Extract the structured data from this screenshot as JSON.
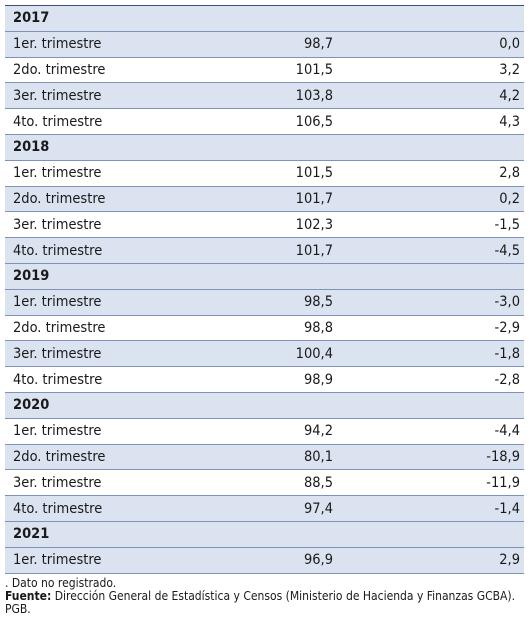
{
  "table": {
    "sections": [
      {
        "year": "2017",
        "rows": [
          {
            "label": "1er. trimestre",
            "value": "98,7",
            "change": "0,0"
          },
          {
            "label": "2do. trimestre",
            "value": "101,5",
            "change": "3,2"
          },
          {
            "label": "3er. trimestre",
            "value": "103,8",
            "change": "4,2"
          },
          {
            "label": "4to. trimestre",
            "value": "106,5",
            "change": "4,3"
          }
        ]
      },
      {
        "year": "2018",
        "rows": [
          {
            "label": "1er. trimestre",
            "value": "101,5",
            "change": "2,8"
          },
          {
            "label": "2do. trimestre",
            "value": "101,7",
            "change": "0,2"
          },
          {
            "label": "3er. trimestre",
            "value": "102,3",
            "change": "-1,5"
          },
          {
            "label": "4to. trimestre",
            "value": "101,7",
            "change": "-4,5"
          }
        ]
      },
      {
        "year": "2019",
        "rows": [
          {
            "label": "1er. trimestre",
            "value": "98,5",
            "change": "-3,0"
          },
          {
            "label": "2do. trimestre",
            "value": "98,8",
            "change": "-2,9"
          },
          {
            "label": "3er. trimestre",
            "value": "100,4",
            "change": "-1,8"
          },
          {
            "label": "4to. trimestre",
            "value": "98,9",
            "change": "-2,8"
          }
        ]
      },
      {
        "year": "2020",
        "rows": [
          {
            "label": "1er. trimestre",
            "value": "94,2",
            "change": "-4,4"
          },
          {
            "label": "2do. trimestre",
            "value": "80,1",
            "change": "-18,9"
          },
          {
            "label": "3er. trimestre",
            "value": "88,5",
            "change": "-11,9"
          },
          {
            "label": "4to. trimestre",
            "value": "97,4",
            "change": "-1,4"
          }
        ]
      },
      {
        "year": "2021",
        "rows": [
          {
            "label": "1er. trimestre",
            "value": "96,9",
            "change": "2,9"
          }
        ]
      }
    ]
  },
  "footer": {
    "note": ". Dato no registrado.",
    "source_label": "Fuente:",
    "source_text": "Dirección General de Estadística y Censos (Ministerio de Hacienda y Finanzas GCBA). PGB."
  }
}
